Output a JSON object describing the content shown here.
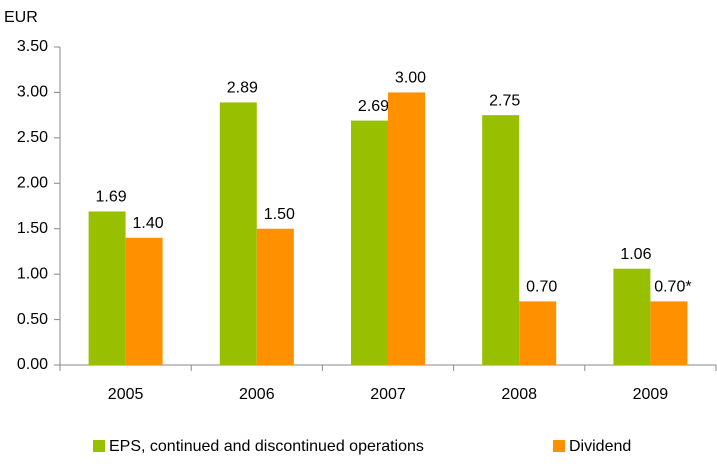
{
  "chart_data": {
    "type": "bar",
    "y_label": "EUR",
    "categories": [
      "2005",
      "2006",
      "2007",
      "2008",
      "2009"
    ],
    "series": [
      {
        "name": "EPS, continued and discontinued operations",
        "color": "#99c000",
        "values": [
          1.69,
          2.89,
          2.69,
          2.75,
          1.06
        ],
        "value_labels": [
          "1.69",
          "2.89",
          "2.69",
          "2.75",
          "1.06"
        ]
      },
      {
        "name": "Dividend",
        "color": "#ff9100",
        "values": [
          1.4,
          1.5,
          3.0,
          0.7,
          0.7
        ],
        "value_labels": [
          "1.40",
          "1.50",
          "3.00",
          "0.70",
          "0.70*"
        ]
      }
    ],
    "ylim": [
      0,
      3.5
    ],
    "yticks": [
      {
        "value": 0,
        "label": "0.00"
      },
      {
        "value": 0.5,
        "label": "0.50"
      },
      {
        "value": 1,
        "label": "1.00"
      },
      {
        "value": 1.5,
        "label": "1.50"
      },
      {
        "value": 2,
        "label": "2.00"
      },
      {
        "value": 2.5,
        "label": "2.50"
      },
      {
        "value": 3,
        "label": "3.00"
      },
      {
        "value": 3.5,
        "label": "3.50"
      }
    ],
    "grid": false,
    "legend": "bottom"
  }
}
